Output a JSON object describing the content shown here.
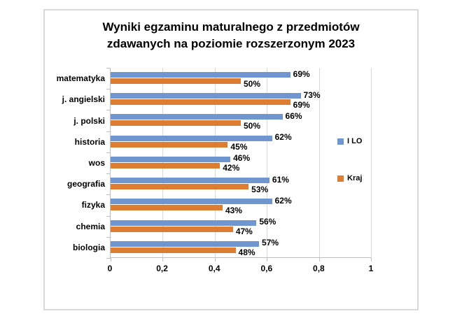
{
  "chart_data": {
    "type": "bar",
    "orientation": "horizontal",
    "title": "Wyniki egzaminu maturalnego z przedmiotów zdawanych na poziomie rozszerzonym 2023",
    "title_lines": [
      "Wyniki egzaminu maturalnego z przedmiotów",
      "zdawanych na poziomie rozszerzonym 2023"
    ],
    "categories": [
      "matematyka",
      "j. angielski",
      "j. polski",
      "historia",
      "wos",
      "geografia",
      "fizyka",
      "chemia",
      "biologia"
    ],
    "series": [
      {
        "name": "I LO",
        "color": "#6f96ce",
        "values": [
          0.69,
          0.73,
          0.66,
          0.62,
          0.46,
          0.61,
          0.62,
          0.56,
          0.57
        ],
        "labels": [
          "69%",
          "73%",
          "66%",
          "62%",
          "46%",
          "61%",
          "62%",
          "56%",
          "57%"
        ]
      },
      {
        "name": "Kraj",
        "color": "#dd7d31",
        "values": [
          0.5,
          0.69,
          0.5,
          0.45,
          0.42,
          0.53,
          0.43,
          0.47,
          0.48
        ],
        "labels": [
          "50%",
          "69%",
          "50%",
          "45%",
          "42%",
          "53%",
          "43%",
          "47%",
          "48%"
        ]
      }
    ],
    "x_axis": {
      "min": 0,
      "max": 1,
      "ticks": [
        {
          "value": 0,
          "label": "0"
        },
        {
          "value": 0.2,
          "label": "0,2"
        },
        {
          "value": 0.4,
          "label": "0,4"
        },
        {
          "value": 0.6,
          "label": "0,6"
        },
        {
          "value": 0.8,
          "label": "0,8"
        },
        {
          "value": 1,
          "label": "1"
        }
      ]
    },
    "legend": {
      "position": "right-inside",
      "entries": [
        "I LO",
        "Kraj"
      ]
    },
    "grid": true
  },
  "colors": {
    "series_ilo": "#6f96ce",
    "series_kraj": "#dd7d31",
    "gridline": "#d9d9d9",
    "axis": "#bfbfbf",
    "frame_border": "#d9d9d9",
    "text": "#000000",
    "background": "#ffffff"
  }
}
